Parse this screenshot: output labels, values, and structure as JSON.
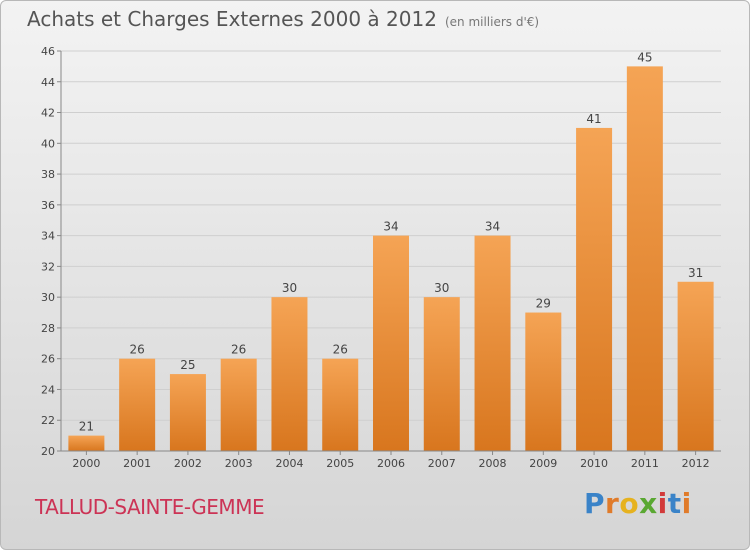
{
  "title": "Achats et Charges Externes 2000 à 2012",
  "subtitle": "(en milliers d'€)",
  "commune": "TALLUD-SAINTE-GEMME",
  "logo": {
    "text": "Proxiti",
    "letters": [
      "P",
      "r",
      "o",
      "x",
      "i",
      "t",
      "i"
    ]
  },
  "colors": {
    "bar_top": "#f5a455",
    "bar_bottom": "#d8761e",
    "grid": "#cfcfcf",
    "commune": "#cc3355"
  },
  "chart_data": {
    "type": "bar",
    "title": "Achats et Charges Externes 2000 à 2012",
    "subtitle": "(en milliers d'€)",
    "xlabel": "",
    "ylabel": "",
    "categories": [
      "2000",
      "2001",
      "2002",
      "2003",
      "2004",
      "2005",
      "2006",
      "2007",
      "2008",
      "2009",
      "2010",
      "2011",
      "2012"
    ],
    "values": [
      21,
      26,
      25,
      26,
      30,
      26,
      34,
      30,
      34,
      29,
      41,
      45,
      31
    ],
    "ylim": [
      20,
      46
    ],
    "yticks": [
      20,
      22,
      24,
      26,
      28,
      30,
      32,
      34,
      36,
      38,
      40,
      42,
      44,
      46
    ],
    "grid": true
  }
}
